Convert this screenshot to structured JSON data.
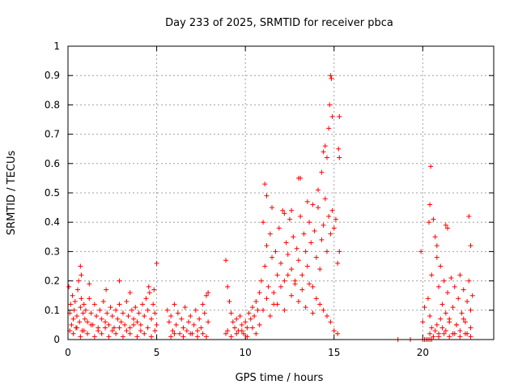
{
  "chart_data": {
    "type": "scatter",
    "title": "Day 233 of 2025, SRMTID for receiver pbca",
    "xlabel": "GPS time / hours",
    "ylabel": "SRMTID / TECUs",
    "xlim": [
      0,
      24
    ],
    "ylim": [
      0,
      1
    ],
    "x_ticks": [
      0,
      5,
      10,
      15,
      20
    ],
    "x_tick_labels": [
      "0",
      "5",
      "10",
      "15",
      "20"
    ],
    "y_ticks": [
      0,
      0.1,
      0.2,
      0.3,
      0.4,
      0.5,
      0.6,
      0.7,
      0.8,
      0.9,
      1
    ],
    "y_tick_labels": [
      "0",
      "0.1",
      "0.2",
      "0.3",
      "0.4",
      "0.5",
      "0.6",
      "0.7",
      "0.8",
      "0.9",
      "1"
    ],
    "grid": true,
    "marker": "plus",
    "color": "#ff0000",
    "series": [
      {
        "name": "SRMTID",
        "x": [
          0.05,
          0.1,
          0.15,
          0.2,
          0.25,
          0.3,
          0.35,
          0.4,
          0.45,
          0.5,
          0.55,
          0.6,
          0.65,
          0.7,
          0.75,
          0.8,
          0.85,
          0.9,
          0.95,
          1.0,
          1.1,
          1.2,
          1.3,
          1.4,
          1.5,
          1.6,
          1.7,
          1.8,
          1.9,
          2.0,
          2.1,
          2.2,
          2.3,
          2.4,
          2.5,
          2.6,
          2.7,
          2.8,
          2.9,
          3.0,
          3.1,
          3.2,
          3.3,
          3.4,
          3.5,
          3.6,
          3.7,
          3.8,
          3.9,
          4.0,
          4.1,
          4.2,
          4.3,
          4.4,
          4.5,
          4.6,
          4.7,
          4.8,
          4.9,
          5.0,
          0.1,
          0.3,
          0.5,
          0.7,
          0.9,
          1.1,
          1.3,
          1.5,
          1.7,
          1.9,
          2.1,
          2.3,
          2.5,
          2.7,
          2.9,
          3.1,
          3.3,
          3.5,
          3.7,
          3.9,
          4.1,
          4.3,
          4.5,
          4.7,
          4.9,
          0.7,
          0.75,
          1.2,
          2.15,
          2.9,
          3.5,
          4.55,
          4.85,
          5.0,
          5.6,
          5.7,
          5.8,
          5.9,
          6.0,
          6.1,
          6.2,
          6.3,
          6.4,
          6.5,
          6.6,
          6.7,
          6.8,
          6.9,
          7.0,
          7.1,
          7.2,
          7.3,
          7.4,
          7.5,
          7.6,
          7.7,
          7.8,
          7.9,
          5.8,
          6.0,
          6.5,
          6.9,
          7.3,
          7.6,
          7.8,
          7.9,
          8.9,
          9.0,
          9.1,
          9.2,
          9.3,
          9.4,
          9.5,
          9.6,
          9.7,
          9.8,
          9.9,
          10.0,
          10.1,
          10.2,
          10.3,
          10.4,
          10.5,
          10.6,
          10.7,
          10.8,
          8.9,
          9.0,
          9.2,
          9.5,
          9.8,
          10.1,
          10.4,
          10.6,
          10.8,
          10.9,
          11.0,
          11.1,
          11.2,
          11.3,
          11.4,
          11.5,
          11.6,
          11.7,
          11.8,
          11.9,
          12.0,
          12.1,
          12.2,
          12.3,
          12.4,
          12.5,
          12.6,
          12.7,
          12.8,
          12.9,
          13.0,
          13.1,
          13.2,
          13.3,
          13.4,
          13.5,
          13.6,
          13.7,
          13.8,
          13.9,
          14.0,
          14.1,
          14.2,
          14.3,
          14.4,
          14.5,
          14.6,
          14.7,
          14.8,
          14.9,
          15.0,
          15.1,
          15.2,
          15.3,
          11.0,
          11.2,
          11.4,
          11.6,
          11.8,
          12.0,
          12.2,
          12.4,
          12.6,
          12.8,
          13.0,
          13.2,
          13.4,
          13.6,
          13.8,
          14.0,
          14.2,
          14.4,
          14.6,
          14.8,
          15.0,
          15.2,
          11.1,
          11.2,
          11.5,
          12.2,
          12.6,
          13.0,
          13.1,
          13.5,
          13.8,
          14.1,
          14.3,
          14.4,
          14.5,
          14.6,
          14.7,
          14.75,
          14.8,
          14.85,
          14.9,
          15.3,
          15.25,
          15.3,
          18.6,
          19.3,
          20.0,
          20.1,
          20.2,
          20.3,
          20.4,
          20.5,
          19.9,
          20.0,
          20.1,
          20.3,
          20.4,
          20.5,
          20.6,
          20.7,
          20.8,
          20.9,
          21.0,
          21.1,
          21.2,
          21.3,
          21.4,
          21.5,
          21.6,
          21.7,
          21.8,
          21.9,
          22.0,
          22.1,
          22.2,
          22.3,
          22.4,
          22.5,
          22.6,
          22.7,
          22.8,
          20.4,
          20.5,
          20.6,
          20.7,
          20.8,
          20.9,
          21.0,
          21.1,
          21.3,
          21.5,
          21.7,
          21.9,
          22.1,
          22.3,
          22.5,
          22.7,
          20.35,
          20.4,
          20.45,
          20.8,
          21.3,
          21.4,
          22.6,
          22.7,
          20.9,
          21.2,
          21.5,
          21.8,
          22.1,
          22.4,
          22.7
        ],
        "y": [
          0.18,
          0.09,
          0.12,
          0.05,
          0.15,
          0.07,
          0.1,
          0.13,
          0.04,
          0.08,
          0.17,
          0.2,
          0.06,
          0.11,
          0.14,
          0.03,
          0.09,
          0.12,
          0.07,
          0.1,
          0.06,
          0.14,
          0.09,
          0.05,
          0.12,
          0.08,
          0.04,
          0.1,
          0.07,
          0.13,
          0.06,
          0.09,
          0.05,
          0.11,
          0.08,
          0.04,
          0.1,
          0.07,
          0.12,
          0.06,
          0.09,
          0.05,
          0.13,
          0.08,
          0.04,
          0.1,
          0.07,
          0.11,
          0.06,
          0.09,
          0.05,
          0.12,
          0.08,
          0.14,
          0.1,
          0.16,
          0.07,
          0.12,
          0.09,
          0.05,
          0.03,
          0.02,
          0.04,
          0.01,
          0.03,
          0.02,
          0.05,
          0.01,
          0.03,
          0.02,
          0.04,
          0.01,
          0.03,
          0.02,
          0.04,
          0.01,
          0.03,
          0.02,
          0.05,
          0.01,
          0.03,
          0.02,
          0.04,
          0.01,
          0.03,
          0.25,
          0.22,
          0.19,
          0.17,
          0.2,
          0.16,
          0.18,
          0.17,
          0.26,
          0.1,
          0.06,
          0.08,
          0.03,
          0.12,
          0.05,
          0.09,
          0.02,
          0.07,
          0.04,
          0.11,
          0.03,
          0.06,
          0.08,
          0.02,
          0.05,
          0.1,
          0.03,
          0.07,
          0.04,
          0.12,
          0.09,
          0.15,
          0.06,
          0.01,
          0.02,
          0.01,
          0.02,
          0.01,
          0.02,
          0.01,
          0.16,
          0.27,
          0.18,
          0.13,
          0.09,
          0.06,
          0.04,
          0.07,
          0.03,
          0.08,
          0.05,
          0.02,
          0.06,
          0.04,
          0.09,
          0.07,
          0.11,
          0.08,
          0.13,
          0.1,
          0.16,
          0.02,
          0.03,
          0.01,
          0.02,
          0.03,
          0.01,
          0.04,
          0.02,
          0.05,
          0.2,
          0.4,
          0.25,
          0.32,
          0.18,
          0.36,
          0.28,
          0.12,
          0.3,
          0.22,
          0.38,
          0.26,
          0.44,
          0.2,
          0.33,
          0.29,
          0.41,
          0.24,
          0.35,
          0.19,
          0.31,
          0.27,
          0.42,
          0.22,
          0.36,
          0.3,
          0.25,
          0.4,
          0.33,
          0.18,
          0.37,
          0.28,
          0.45,
          0.24,
          0.34,
          0.39,
          0.48,
          0.3,
          0.42,
          0.36,
          0.44,
          0.38,
          0.41,
          0.26,
          0.3,
          0.1,
          0.14,
          0.08,
          0.16,
          0.12,
          0.18,
          0.1,
          0.22,
          0.15,
          0.2,
          0.13,
          0.17,
          0.11,
          0.19,
          0.09,
          0.14,
          0.12,
          0.1,
          0.08,
          0.06,
          0.03,
          0.02,
          0.53,
          0.49,
          0.45,
          0.43,
          0.44,
          0.55,
          0.55,
          0.47,
          0.46,
          0.51,
          0.57,
          0.64,
          0.66,
          0.62,
          0.72,
          0.8,
          0.9,
          0.89,
          0.76,
          0.76,
          0.65,
          0.62,
          0.0,
          0.0,
          0.0,
          0.0,
          0.0,
          0.0,
          0.0,
          0.0,
          0.3,
          0.06,
          0.11,
          0.14,
          0.08,
          0.22,
          0.41,
          0.35,
          0.28,
          0.18,
          0.25,
          0.12,
          0.2,
          0.09,
          0.16,
          0.07,
          0.21,
          0.11,
          0.18,
          0.05,
          0.14,
          0.22,
          0.09,
          0.17,
          0.06,
          0.13,
          0.2,
          0.1,
          0.15,
          0.02,
          0.04,
          0.01,
          0.03,
          0.05,
          0.02,
          0.07,
          0.04,
          0.03,
          0.06,
          0.02,
          0.05,
          0.03,
          0.07,
          0.02,
          0.04,
          0.4,
          0.46,
          0.59,
          0.32,
          0.39,
          0.38,
          0.42,
          0.32,
          0.01,
          0.02,
          0.01,
          0.02,
          0.01,
          0.02,
          0.01
        ]
      }
    ]
  }
}
